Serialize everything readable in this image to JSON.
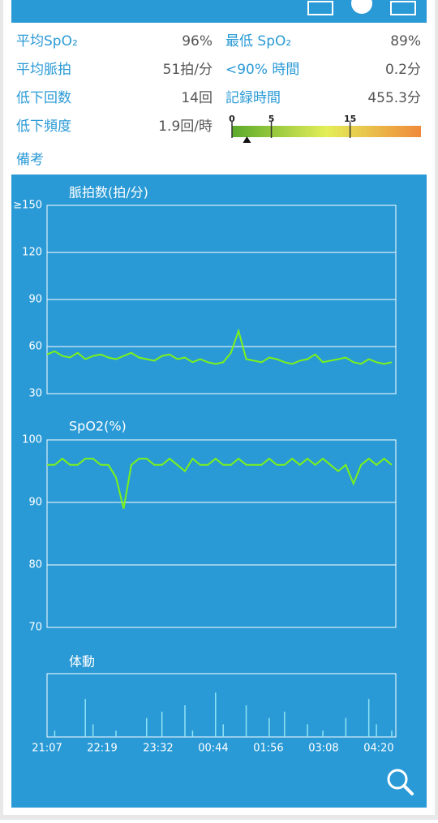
{
  "summary": {
    "rows": [
      [
        {
          "label": "平均SpO₂",
          "value": "96%"
        },
        {
          "label": "最低 SpO₂",
          "value": "89%"
        }
      ],
      [
        {
          "label": "平均脈拍",
          "value": "51拍/分"
        },
        {
          "label": "<90% 時間",
          "value": "0.2分"
        }
      ],
      [
        {
          "label": "低下回数",
          "value": "14回"
        },
        {
          "label": "記録時間",
          "value": "455.3分"
        }
      ],
      [
        {
          "label": "低下頻度",
          "value": "1.9回/時"
        }
      ]
    ],
    "frequency_scale": {
      "range": [
        0,
        24
      ],
      "ticks": [
        0,
        5,
        15
      ],
      "value": 1.9
    },
    "note_label": "備考"
  },
  "chart_data": [
    {
      "type": "line",
      "title": "脈拍数(拍/分)",
      "xlim": [
        0,
        455.3
      ],
      "ylim": [
        30,
        150
      ],
      "yticks": [
        30,
        60,
        90,
        120,
        {
          "value": 150,
          "label": "≥150"
        }
      ],
      "grid": true,
      "x": [
        0,
        10,
        20,
        30,
        40,
        50,
        60,
        70,
        80,
        90,
        100,
        110,
        120,
        130,
        140,
        150,
        160,
        170,
        180,
        190,
        200,
        210,
        220,
        230,
        240,
        250,
        260,
        270,
        280,
        290,
        300,
        310,
        320,
        330,
        340,
        350,
        360,
        370,
        380,
        390,
        400,
        410,
        420,
        430,
        440,
        450
      ],
      "series": [
        {
          "color": "#7cf21a",
          "values": [
            55,
            57,
            54,
            53,
            56,
            52,
            54,
            55,
            53,
            52,
            54,
            56,
            53,
            52,
            51,
            54,
            55,
            52,
            53,
            50,
            52,
            50,
            49,
            50,
            56,
            70,
            52,
            51,
            50,
            53,
            52,
            50,
            49,
            51,
            52,
            55,
            50,
            51,
            52,
            53,
            50,
            49,
            52,
            50,
            49,
            50
          ]
        }
      ]
    },
    {
      "type": "line",
      "title": "SpO2(%)",
      "xlim": [
        0,
        455.3
      ],
      "ylim": [
        70,
        100
      ],
      "yticks": [
        70,
        80,
        90,
        100
      ],
      "grid": true,
      "x": [
        0,
        10,
        20,
        30,
        40,
        50,
        60,
        70,
        80,
        90,
        100,
        110,
        120,
        130,
        140,
        150,
        160,
        170,
        180,
        190,
        200,
        210,
        220,
        230,
        240,
        250,
        260,
        270,
        280,
        290,
        300,
        310,
        320,
        330,
        340,
        350,
        360,
        370,
        380,
        390,
        400,
        410,
        420,
        430,
        440,
        450
      ],
      "series": [
        {
          "color": "#7cf21a",
          "values": [
            96,
            96,
            97,
            96,
            96,
            97,
            97,
            96,
            96,
            94,
            89,
            96,
            97,
            97,
            96,
            96,
            97,
            96,
            95,
            97,
            96,
            96,
            97,
            96,
            96,
            97,
            96,
            96,
            96,
            97,
            96,
            96,
            97,
            96,
            97,
            96,
            97,
            96,
            95,
            96,
            93,
            96,
            97,
            96,
            97,
            96
          ]
        }
      ]
    },
    {
      "type": "bar",
      "title": "体動",
      "xlim": [
        0,
        455.3
      ],
      "ylim": [
        0,
        10
      ],
      "grid": false,
      "xticks": [
        {
          "value": 0,
          "label": "21:07"
        },
        {
          "value": 72,
          "label": "22:19"
        },
        {
          "value": 145,
          "label": "23:32"
        },
        {
          "value": 217,
          "label": "00:44"
        },
        {
          "value": 289,
          "label": "01:56"
        },
        {
          "value": 361,
          "label": "03:08"
        },
        {
          "value": 433,
          "label": "04:20"
        }
      ],
      "x": [
        0,
        10,
        20,
        30,
        40,
        50,
        60,
        70,
        80,
        90,
        100,
        110,
        120,
        130,
        140,
        150,
        160,
        170,
        180,
        190,
        200,
        210,
        220,
        230,
        240,
        250,
        260,
        270,
        280,
        290,
        300,
        310,
        320,
        330,
        340,
        350,
        360,
        370,
        380,
        390,
        400,
        410,
        420,
        430,
        440,
        450
      ],
      "series": [
        {
          "color": "#8fe3f5",
          "values": [
            0,
            1,
            0,
            0,
            0,
            6,
            2,
            0,
            0,
            1,
            0,
            0,
            0,
            3,
            0,
            4,
            0,
            0,
            5,
            1,
            0,
            0,
            7,
            2,
            0,
            0,
            5,
            0,
            0,
            3,
            0,
            4,
            0,
            0,
            2,
            0,
            1,
            0,
            0,
            3,
            0,
            0,
            6,
            2,
            0,
            1
          ]
        }
      ]
    }
  ]
}
